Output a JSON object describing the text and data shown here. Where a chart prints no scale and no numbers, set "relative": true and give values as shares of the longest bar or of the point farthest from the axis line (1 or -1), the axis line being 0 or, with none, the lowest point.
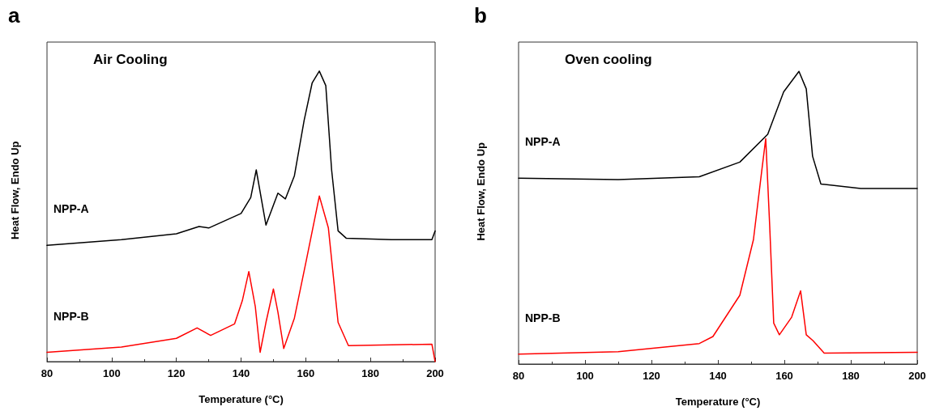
{
  "chart_data": [
    {
      "type": "line",
      "title": "Air Cooling",
      "xlabel": "Temperature (°C)",
      "ylabel": "Heat Flow, Endo Up",
      "annotations": [
        "a"
      ],
      "relative": true,
      "xlim": [
        80,
        200
      ],
      "xticks": [
        80,
        100,
        120,
        140,
        160,
        180,
        200
      ],
      "tick_labels": "x",
      "grid": false,
      "legend": false,
      "marker": "none",
      "line_style": "solid",
      "series": [
        {
          "name": "NPP-A",
          "color": "#000000",
          "x": [
            80,
            103,
            120,
            127,
            130,
            140,
            143,
            144.7,
            147.7,
            151.4,
            153.7,
            156.5,
            159.5,
            162,
            164.2,
            166.2,
            168,
            170,
            172.5,
            186.5,
            199,
            200
          ],
          "values": [
            0.4,
            0.42,
            0.44,
            0.465,
            0.46,
            0.51,
            0.565,
            0.66,
            0.47,
            0.58,
            0.56,
            0.64,
            0.83,
            0.96,
            1,
            0.95,
            0.66,
            0.45,
            0.425,
            0.42,
            0.42,
            0.45
          ]
        },
        {
          "name": "NPP-B",
          "color": "#ff0000",
          "x": [
            80,
            103,
            120,
            126.4,
            130.6,
            138,
            140.4,
            142.4,
            144.4,
            145.9,
            147.7,
            150,
            151.4,
            153.2,
            156.5,
            160.2,
            164.2,
            167,
            170,
            173.2,
            199,
            200
          ],
          "values": [
            0.032,
            0.05,
            0.08,
            0.116,
            0.09,
            0.13,
            0.21,
            0.31,
            0.19,
            0.032,
            0.135,
            0.25,
            0.17,
            0.045,
            0.15,
            0.35,
            0.57,
            0.46,
            0.135,
            0.055,
            0.06,
            0
          ]
        }
      ]
    },
    {
      "type": "line",
      "title": "Oven cooling",
      "xlabel": "Temperature (°C)",
      "ylabel": "Heat Flow, Endo Up",
      "annotations": [
        "b"
      ],
      "relative": true,
      "xlim": [
        80,
        200
      ],
      "xticks": [
        80,
        100,
        120,
        140,
        160,
        180,
        200
      ],
      "tick_labels": "x",
      "grid": false,
      "legend": false,
      "marker": "none",
      "line_style": "solid",
      "series": [
        {
          "name": "NPP-A",
          "color": "#000000",
          "x": [
            80,
            110,
            134.4,
            146.6,
            155,
            159.8,
            164.4,
            166.6,
            168.5,
            171,
            183,
            200
          ],
          "values": [
            0.635,
            0.63,
            0.64,
            0.69,
            0.785,
            0.93,
            1,
            0.94,
            0.71,
            0.615,
            0.6,
            0.6
          ]
        },
        {
          "name": "NPP-B",
          "color": "#ff0000",
          "x": [
            80,
            110,
            134.4,
            138.5,
            146.6,
            150.7,
            153.2,
            154.4,
            155.6,
            156.8,
            158.5,
            162.2,
            164.9,
            166.6,
            168.6,
            172,
            200
          ],
          "values": [
            0.034,
            0.042,
            0.07,
            0.094,
            0.235,
            0.425,
            0.66,
            0.77,
            0.47,
            0.14,
            0.1,
            0.16,
            0.25,
            0.1,
            0.08,
            0.037,
            0.04
          ]
        }
      ]
    }
  ]
}
